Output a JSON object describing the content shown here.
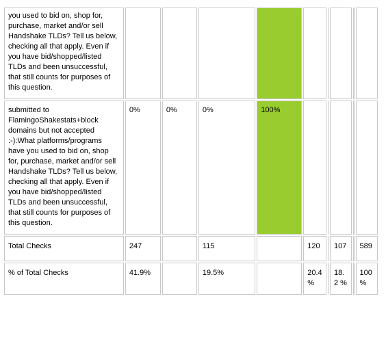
{
  "table": {
    "rows": [
      [
        "you used to bid on, shop for, purchase, market and/or sell Handshake TLDs? Tell us below, checking all that apply. Even if you have bid/shopped/listed TLDs and been unsuccessful, that still counts for purposes of this question.",
        null,
        null,
        null,
        null,
        null,
        null,
        null,
        null,
        null
      ],
      [
        "submitted to FlamingoShakestats+block domains but not accepted :-):What platforms/programs have you used to bid on, shop for, purchase, market and/or sell Handshake TLDs? Tell us below, checking all that apply. Even if you have bid/shopped/listed TLDs and been unsuccessful, that still counts for purposes of this question.",
        "0%",
        "0%",
        "0%",
        "100%",
        null,
        null,
        null,
        null,
        null
      ],
      [
        "Total Checks",
        "247",
        null,
        "115",
        null,
        "120",
        null,
        "107",
        null,
        "589"
      ],
      [
        "% of Total Checks",
        "41.9%",
        null,
        "19.5%",
        null,
        "20.4 %",
        null,
        "18.2 %",
        null,
        "100 %"
      ]
    ]
  }
}
